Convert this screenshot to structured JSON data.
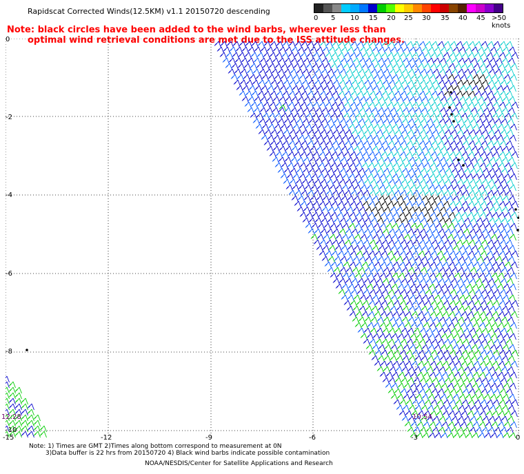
{
  "title": "Rapidscat Corrected Winds(12.5KM) v1.1 20150720 descending",
  "note": {
    "line1": "Note: black circles have been added to the wind barbs, wherever less than",
    "line2": "optimal wind retrieval conditions are met due to the ISS attitude changes."
  },
  "legend": {
    "colors": [
      "#222222",
      "#555555",
      "#888888",
      "#00ccff",
      "#00aaff",
      "#0077ff",
      "#0000cc",
      "#00cc00",
      "#55ff00",
      "#ffff00",
      "#ffcc00",
      "#ff8800",
      "#ff4400",
      "#ff0000",
      "#cc0000",
      "#884400",
      "#552200",
      "#ff00ff",
      "#cc00cc",
      "#8800cc",
      "#440088"
    ],
    "labels": [
      "0",
      "5",
      "10",
      "15",
      "20",
      "25",
      "30",
      "35",
      "40",
      "45",
      ">50 knots"
    ]
  },
  "axes": {
    "y_ticks": [
      "0",
      "-2",
      "-4",
      "-6",
      "-8",
      "-10"
    ],
    "x_ticks": [
      "-15",
      "-12",
      "-9",
      "-6",
      "-3",
      "0"
    ],
    "time_left": "12:28",
    "time_right": "10:54"
  },
  "map_colors": {
    "blue": "#0000cc",
    "mid_blue": "#0055ff",
    "cyan": "#00cccc",
    "green": "#00cc00",
    "black": "#000000"
  },
  "footer": {
    "line1": "Note: 1) Times are GMT 2)Times along bottom correspond to measurement at 0N",
    "line2": "3)Data buffer is 22 hrs from 20150720 4) Black wind barbs indicate possible contamination",
    "line3": "NOAA/NESDIS/Center for Satellite Applications and Research"
  }
}
